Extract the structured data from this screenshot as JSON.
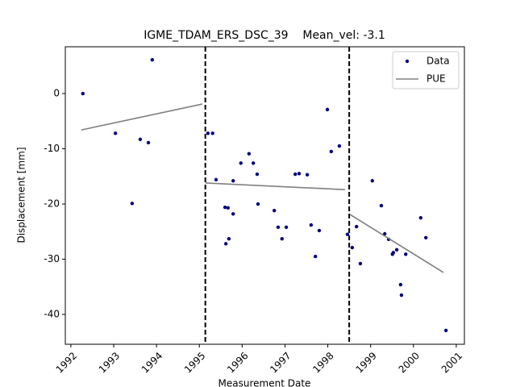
{
  "chart_data": {
    "type": "scatter",
    "title": "IGME_TDAM_ERS_DSC_39    Mean_vel: -3.1",
    "x_label": "Measurement Date",
    "y_label": "Displacement [mm]",
    "xlim": [
      1991.87,
      2001.19
    ],
    "ylim": [
      -45.4,
      8.47
    ],
    "xticks": [
      1992,
      1993,
      1994,
      1995,
      1996,
      1997,
      1998,
      1999,
      2000,
      2001
    ],
    "yticks": [
      -40,
      -30,
      -20,
      -10,
      0
    ],
    "vlines": [
      1995.14,
      1998.5
    ],
    "legend": "upper right",
    "series": [
      {
        "name": "Data",
        "type": "scatter",
        "color": "#000080",
        "x": [
          1992.28,
          1993.04,
          1993.43,
          1993.62,
          1993.81,
          1993.9,
          1995.2,
          1995.31,
          1995.39,
          1995.6,
          1995.62,
          1995.67,
          1995.69,
          1995.79,
          1995.79,
          1995.97,
          1996.16,
          1996.26,
          1996.35,
          1996.37,
          1996.75,
          1996.84,
          1996.93,
          1997.03,
          1997.24,
          1997.33,
          1997.52,
          1997.61,
          1997.71,
          1997.8,
          1997.99,
          1998.08,
          1998.27,
          1998.46,
          1998.57,
          1998.67,
          1998.76,
          1999.04,
          1999.25,
          1999.33,
          1999.42,
          1999.51,
          1999.53,
          1999.61,
          1999.7,
          1999.72,
          1999.82,
          2000.17,
          2000.29,
          2000.76
        ],
        "values": [
          0,
          -7.2,
          -19.9,
          -8.3,
          -8.9,
          6.1,
          -7.2,
          -7.2,
          -15.6,
          -20.6,
          -27.2,
          -20.7,
          -26.3,
          -21.8,
          -15.8,
          -12.6,
          -10.9,
          -12.6,
          -14.6,
          -20.0,
          -21.2,
          -24.2,
          -26.3,
          -24.2,
          -14.6,
          -14.5,
          -14.7,
          -23.8,
          -29.5,
          -24.8,
          -2.9,
          -10.5,
          -9.5,
          -25.5,
          -27.9,
          -24.1,
          -30.8,
          -15.8,
          -20.3,
          -25.4,
          -26.4,
          -29.1,
          -28.8,
          -28.3,
          -34.6,
          -36.5,
          -29.1,
          -22.5,
          -26.1,
          -42.9
        ]
      },
      {
        "name": "PUE",
        "type": "line",
        "color": "#808080",
        "x": [
          1992.24,
          1995.07,
          null,
          1995.14,
          1998.4,
          null,
          1998.52,
          2000.7
        ],
        "values": [
          -6.6,
          -1.9,
          null,
          -16.2,
          -17.4,
          null,
          -21.9,
          -32.4
        ]
      }
    ]
  }
}
